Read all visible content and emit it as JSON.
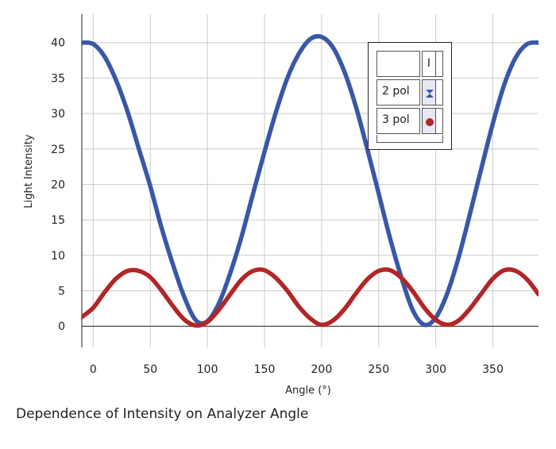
{
  "caption": "Dependence of Intensity on Analyzer Angle",
  "legend": {
    "header": "I",
    "entries": [
      {
        "label": "2 pol",
        "marker": "hourglass-icon",
        "color": "#3a57a6"
      },
      {
        "label": "3 pol",
        "marker": "circle-icon",
        "color": "#b22626"
      }
    ]
  },
  "chart_data": {
    "type": "line",
    "title": "",
    "xlabel": "Angle (°)",
    "ylabel": "Light Intensity",
    "xlim": [
      -10,
      390
    ],
    "ylim": [
      -3,
      44
    ],
    "xticks": [
      0,
      50,
      100,
      150,
      200,
      250,
      300,
      350
    ],
    "yticks": [
      0,
      5,
      10,
      15,
      20,
      25,
      30,
      35,
      40
    ],
    "grid": true,
    "legend_position": "top-right",
    "series": [
      {
        "name": "2 pol",
        "color": "#3a57a6",
        "x": [
          -10,
          0,
          10,
          20,
          30,
          40,
          50,
          60,
          70,
          80,
          90,
          100,
          110,
          120,
          130,
          140,
          150,
          160,
          170,
          180,
          190,
          200,
          210,
          220,
          230,
          240,
          250,
          260,
          270,
          280,
          290,
          300,
          310,
          320,
          330,
          340,
          350,
          360,
          370,
          380,
          390
        ],
        "y": [
          40.0,
          39.8,
          38.0,
          34.7,
          30.3,
          25.0,
          19.7,
          13.8,
          8.6,
          4.0,
          0.8,
          0.7,
          3.2,
          7.5,
          12.7,
          18.7,
          24.6,
          30.2,
          35.0,
          38.4,
          40.5,
          40.8,
          39.3,
          35.9,
          31.0,
          25.0,
          18.7,
          12.4,
          6.8,
          2.2,
          0.2,
          1.2,
          4.6,
          9.7,
          15.9,
          22.3,
          28.6,
          34.1,
          37.9,
          39.8,
          40.0
        ]
      },
      {
        "name": "3 pol",
        "color": "#b22626",
        "x": [
          -10,
          0,
          10,
          20,
          30,
          40,
          50,
          60,
          70,
          80,
          90,
          100,
          110,
          120,
          130,
          140,
          150,
          160,
          170,
          180,
          190,
          200,
          210,
          220,
          230,
          240,
          250,
          260,
          270,
          280,
          290,
          300,
          310,
          320,
          330,
          340,
          350,
          360,
          370,
          380,
          390
        ],
        "y": [
          1.3,
          2.6,
          4.8,
          6.7,
          7.8,
          7.8,
          6.9,
          5.0,
          2.8,
          0.9,
          0.1,
          0.6,
          2.3,
          4.5,
          6.6,
          7.8,
          7.9,
          6.8,
          5.0,
          2.8,
          1.1,
          0.2,
          0.8,
          2.4,
          4.6,
          6.6,
          7.8,
          7.9,
          6.8,
          4.9,
          2.6,
          0.9,
          0.2,
          0.8,
          2.5,
          4.6,
          6.7,
          7.9,
          7.8,
          6.6,
          4.5
        ]
      }
    ]
  }
}
